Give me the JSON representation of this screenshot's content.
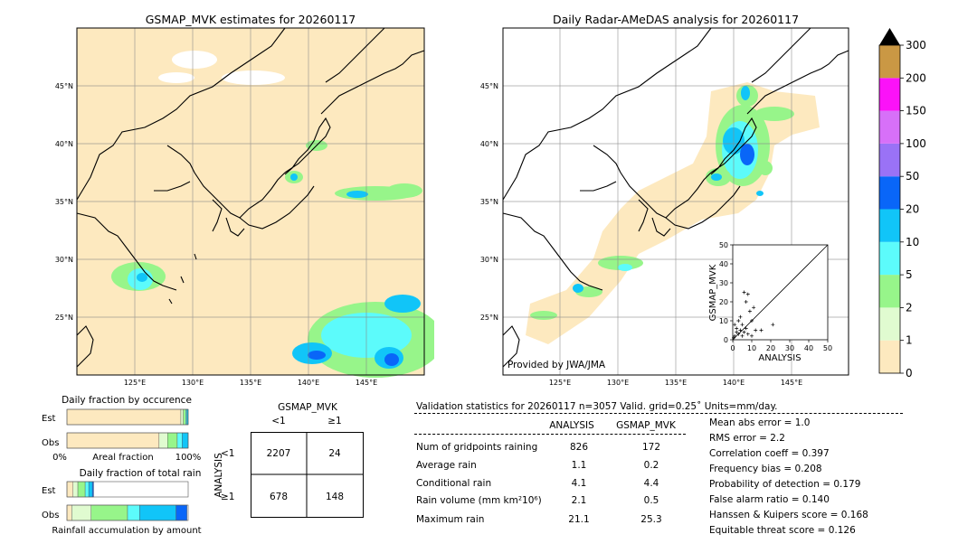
{
  "maps": [
    {
      "title": "GSMAP_MVK estimates for 20260117",
      "lon_ticks": [
        "125°E",
        "130°E",
        "135°E",
        "140°E",
        "145°E"
      ],
      "lat_ticks": [
        "45°N",
        "40°N",
        "35°N",
        "30°N",
        "25°N"
      ]
    },
    {
      "title": "Daily Radar-AMeDAS analysis for 20260117",
      "lon_ticks": [
        "125°E",
        "130°E",
        "135°E",
        "140°E",
        "145°E"
      ],
      "lat_ticks": [
        "45°N",
        "40°N",
        "35°N",
        "30°N",
        "25°N"
      ],
      "credit": "Provided by JWA/JMA"
    }
  ],
  "colorbar": {
    "levels": [
      "0",
      "1",
      "2",
      "5",
      "10",
      "20",
      "50",
      "100",
      "150",
      "200",
      "300"
    ],
    "colors": [
      "#fde9bf",
      "#e0fbd0",
      "#97f58a",
      "#5cfbfb",
      "#11c5f8",
      "#0966f8",
      "#9a72f6",
      "#d770f8",
      "#fb12f8",
      "#ca9844"
    ],
    "over_color": "#000000"
  },
  "chart_data": [
    {
      "type": "scatter",
      "xlabel": "ANALYSIS",
      "ylabel": "GSMAP_MVK",
      "xlim": [
        0,
        50
      ],
      "ylim": [
        0,
        50
      ],
      "x_ticks": [
        "0",
        "10",
        "20",
        "30",
        "40",
        "50"
      ],
      "y_ticks": [
        "0",
        "10",
        "20",
        "30",
        "40",
        "50"
      ],
      "points": [
        [
          0.5,
          1
        ],
        [
          1,
          2
        ],
        [
          2,
          6
        ],
        [
          3,
          3
        ],
        [
          3,
          10
        ],
        [
          4,
          5
        ],
        [
          4,
          12
        ],
        [
          5,
          2
        ],
        [
          5,
          8
        ],
        [
          6,
          25
        ],
        [
          6,
          4
        ],
        [
          7,
          20
        ],
        [
          7,
          6
        ],
        [
          8,
          24
        ],
        [
          8,
          3
        ],
        [
          9,
          15
        ],
        [
          10,
          10
        ],
        [
          10,
          2
        ],
        [
          12,
          5
        ],
        [
          15,
          5
        ],
        [
          21.1,
          8
        ],
        [
          11,
          17
        ],
        [
          1,
          8
        ],
        [
          2,
          4
        ]
      ]
    },
    {
      "type": "bar",
      "title": "Daily fraction by occurence",
      "categories": [
        "Est",
        "Obs"
      ],
      "xlabel": "Areal fraction",
      "x_ticks": [
        "0%",
        "100%"
      ],
      "series": [
        {
          "values": [
            0.94,
            0.76
          ]
        },
        {
          "values": [
            0.02,
            0.07
          ]
        },
        {
          "values": [
            0.02,
            0.08
          ]
        },
        {
          "values": [
            0.01,
            0.04
          ]
        },
        {
          "values": [
            0.01,
            0.05
          ]
        }
      ]
    },
    {
      "type": "bar",
      "title": "Daily fraction of total rain",
      "categories": [
        "Est",
        "Obs"
      ],
      "xlabel": "Rainfall accumulation by amount",
      "series": [
        {
          "values": [
            0.05,
            0.04
          ]
        },
        {
          "values": [
            0.04,
            0.16
          ]
        },
        {
          "values": [
            0.06,
            0.3
          ]
        },
        {
          "values": [
            0.03,
            0.1
          ]
        },
        {
          "values": [
            0.03,
            0.3
          ]
        },
        {
          "values": [
            0.01,
            0.09
          ]
        }
      ]
    }
  ],
  "contingency": {
    "title": "GSMAP_MVK",
    "col_labels": [
      "<1",
      "≥1"
    ],
    "row_labels": [
      "<1",
      "≥1"
    ],
    "ylabel": "ANALYSIS",
    "cells": [
      [
        "2207",
        "24"
      ],
      [
        "678",
        "148"
      ]
    ]
  },
  "validation": {
    "header": "Validation statistics for 20260117  n=3057 Valid. grid=0.25˚ Units=mm/day.",
    "col_headers": [
      "ANALYSIS",
      "GSMAP_MVK"
    ],
    "rows": [
      {
        "label": "Num of gridpoints raining",
        "analysis": "826",
        "gsmap": "172"
      },
      {
        "label": "Average rain",
        "analysis": "1.1",
        "gsmap": "0.2"
      },
      {
        "label": "Conditional rain",
        "analysis": "4.1",
        "gsmap": "4.4"
      },
      {
        "label": "Rain volume (mm km²10⁶)",
        "analysis": "2.1",
        "gsmap": "0.5"
      },
      {
        "label": "Maximum rain",
        "analysis": "21.1",
        "gsmap": "25.3"
      }
    ],
    "scores": [
      "Mean abs error =    1.0",
      "RMS error =    2.2",
      "Correlation coeff =  0.397",
      "Frequency bias =  0.208",
      "Probability of detection =  0.179",
      "False alarm ratio =  0.140",
      "Hanssen & Kuipers score =  0.168",
      "Equitable threat score =  0.126"
    ]
  }
}
